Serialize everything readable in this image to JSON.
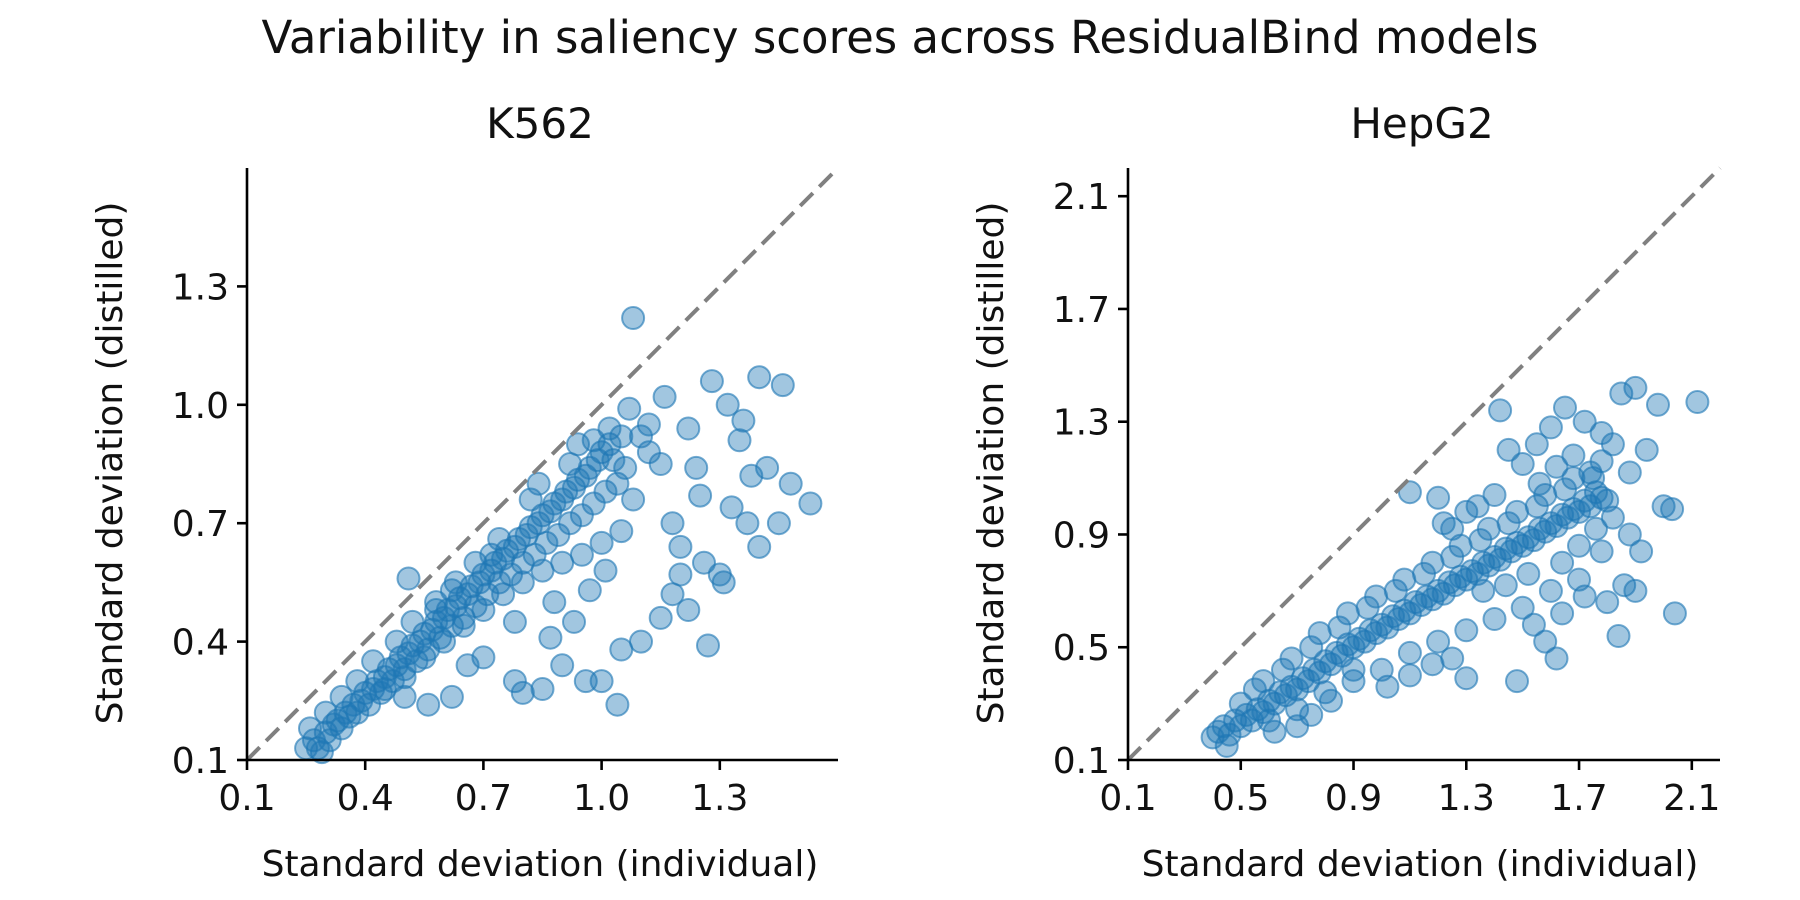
{
  "suptitle": "Variability in saliency scores across ResidualBind models",
  "chart_data": [
    {
      "type": "scatter",
      "title": "K562",
      "xlabel": "Standard deviation (individual)",
      "ylabel": "Standard deviation (distilled)",
      "xlim": [
        0.1,
        1.6
      ],
      "ylim": [
        0.1,
        1.6
      ],
      "xticks": [
        "0.1",
        "0.4",
        "0.7",
        "1.0",
        "1.3"
      ],
      "yticks": [
        "0.1",
        "0.4",
        "0.7",
        "1.0",
        "1.3"
      ],
      "diagonal": "y = x",
      "color": "#1f77b4",
      "points": [
        [
          0.25,
          0.13
        ],
        [
          0.27,
          0.15
        ],
        [
          0.28,
          0.13
        ],
        [
          0.3,
          0.17
        ],
        [
          0.31,
          0.15
        ],
        [
          0.32,
          0.19
        ],
        [
          0.33,
          0.2
        ],
        [
          0.34,
          0.18
        ],
        [
          0.35,
          0.22
        ],
        [
          0.36,
          0.21
        ],
        [
          0.37,
          0.24
        ],
        [
          0.38,
          0.22
        ],
        [
          0.39,
          0.25
        ],
        [
          0.4,
          0.27
        ],
        [
          0.41,
          0.24
        ],
        [
          0.42,
          0.28
        ],
        [
          0.43,
          0.3
        ],
        [
          0.44,
          0.27
        ],
        [
          0.45,
          0.31
        ],
        [
          0.46,
          0.33
        ],
        [
          0.47,
          0.3
        ],
        [
          0.48,
          0.34
        ],
        [
          0.49,
          0.36
        ],
        [
          0.5,
          0.33
        ],
        [
          0.51,
          0.37
        ],
        [
          0.52,
          0.39
        ],
        [
          0.53,
          0.35
        ],
        [
          0.54,
          0.4
        ],
        [
          0.55,
          0.42
        ],
        [
          0.56,
          0.38
        ],
        [
          0.57,
          0.43
        ],
        [
          0.58,
          0.45
        ],
        [
          0.59,
          0.41
        ],
        [
          0.6,
          0.46
        ],
        [
          0.61,
          0.48
        ],
        [
          0.62,
          0.44
        ],
        [
          0.63,
          0.49
        ],
        [
          0.64,
          0.51
        ],
        [
          0.65,
          0.46
        ],
        [
          0.66,
          0.52
        ],
        [
          0.67,
          0.54
        ],
        [
          0.68,
          0.49
        ],
        [
          0.69,
          0.55
        ],
        [
          0.7,
          0.57
        ],
        [
          0.71,
          0.52
        ],
        [
          0.72,
          0.58
        ],
        [
          0.73,
          0.6
        ],
        [
          0.74,
          0.55
        ],
        [
          0.75,
          0.61
        ],
        [
          0.76,
          0.63
        ],
        [
          0.77,
          0.57
        ],
        [
          0.78,
          0.64
        ],
        [
          0.79,
          0.66
        ],
        [
          0.8,
          0.6
        ],
        [
          0.81,
          0.67
        ],
        [
          0.82,
          0.69
        ],
        [
          0.83,
          0.62
        ],
        [
          0.84,
          0.7
        ],
        [
          0.85,
          0.72
        ],
        [
          0.86,
          0.65
        ],
        [
          0.87,
          0.73
        ],
        [
          0.88,
          0.75
        ],
        [
          0.89,
          0.67
        ],
        [
          0.9,
          0.76
        ],
        [
          0.91,
          0.78
        ],
        [
          0.92,
          0.7
        ],
        [
          0.93,
          0.79
        ],
        [
          0.94,
          0.81
        ],
        [
          0.95,
          0.72
        ],
        [
          0.96,
          0.82
        ],
        [
          0.97,
          0.84
        ],
        [
          0.98,
          0.75
        ],
        [
          0.99,
          0.86
        ],
        [
          1.0,
          0.88
        ],
        [
          1.01,
          0.78
        ],
        [
          1.02,
          0.9
        ],
        [
          1.03,
          0.86
        ],
        [
          1.04,
          0.8
        ],
        [
          1.05,
          0.92
        ],
        [
          1.06,
          0.84
        ],
        [
          0.7,
          0.48
        ],
        [
          0.75,
          0.52
        ],
        [
          0.8,
          0.55
        ],
        [
          0.85,
          0.58
        ],
        [
          0.9,
          0.6
        ],
        [
          0.95,
          0.62
        ],
        [
          1.0,
          0.65
        ],
        [
          1.05,
          0.68
        ],
        [
          0.78,
          0.45
        ],
        [
          0.88,
          0.5
        ],
        [
          0.6,
          0.4
        ],
        [
          0.65,
          0.44
        ],
        [
          0.55,
          0.36
        ],
        [
          0.5,
          0.31
        ],
        [
          0.45,
          0.28
        ],
        [
          0.72,
          0.62
        ],
        [
          0.82,
          0.76
        ],
        [
          0.92,
          0.85
        ],
        [
          0.98,
          0.91
        ],
        [
          0.62,
          0.53
        ],
        [
          0.68,
          0.6
        ],
        [
          0.52,
          0.45
        ],
        [
          0.58,
          0.5
        ],
        [
          0.48,
          0.4
        ],
        [
          0.42,
          0.35
        ],
        [
          0.38,
          0.3
        ],
        [
          0.34,
          0.26
        ],
        [
          0.3,
          0.22
        ],
        [
          0.29,
          0.12
        ],
        [
          0.26,
          0.18
        ],
        [
          1.08,
          1.22
        ],
        [
          1.08,
          0.76
        ],
        [
          1.1,
          0.92
        ],
        [
          1.12,
          0.95
        ],
        [
          1.15,
          0.85
        ],
        [
          1.16,
          1.02
        ],
        [
          1.18,
          0.7
        ],
        [
          1.2,
          0.64
        ],
        [
          1.22,
          0.94
        ],
        [
          1.24,
          0.84
        ],
        [
          1.28,
          1.06
        ],
        [
          1.32,
          1.0
        ],
        [
          1.36,
          0.96
        ],
        [
          1.4,
          1.07
        ],
        [
          1.46,
          1.05
        ],
        [
          1.42,
          0.84
        ],
        [
          1.48,
          0.8
        ],
        [
          1.53,
          0.75
        ],
        [
          1.45,
          0.7
        ],
        [
          1.4,
          0.64
        ],
        [
          1.3,
          0.57
        ],
        [
          1.31,
          0.55
        ],
        [
          1.27,
          0.39
        ],
        [
          1.22,
          0.48
        ],
        [
          1.18,
          0.52
        ],
        [
          1.15,
          0.46
        ],
        [
          1.1,
          0.4
        ],
        [
          1.05,
          0.38
        ],
        [
          1.04,
          0.24
        ],
        [
          1.0,
          0.3
        ],
        [
          0.96,
          0.3
        ],
        [
          0.9,
          0.34
        ],
        [
          0.85,
          0.28
        ],
        [
          0.8,
          0.27
        ],
        [
          0.78,
          0.3
        ],
        [
          0.7,
          0.36
        ],
        [
          0.66,
          0.34
        ],
        [
          0.62,
          0.26
        ],
        [
          0.56,
          0.24
        ],
        [
          0.5,
          0.26
        ],
        [
          0.51,
          0.56
        ],
        [
          0.58,
          0.48
        ],
        [
          0.63,
          0.55
        ],
        [
          0.74,
          0.66
        ],
        [
          0.84,
          0.8
        ],
        [
          0.94,
          0.9
        ],
        [
          1.02,
          0.94
        ],
        [
          1.07,
          0.99
        ],
        [
          1.12,
          0.88
        ],
        [
          1.25,
          0.77
        ],
        [
          1.35,
          0.91
        ],
        [
          1.38,
          0.82
        ],
        [
          1.2,
          0.57
        ],
        [
          1.26,
          0.6
        ],
        [
          1.33,
          0.74
        ],
        [
          1.37,
          0.7
        ],
        [
          0.93,
          0.45
        ],
        [
          0.97,
          0.53
        ],
        [
          1.01,
          0.58
        ],
        [
          0.87,
          0.41
        ]
      ]
    },
    {
      "type": "scatter",
      "title": "HepG2",
      "xlabel": "Standard deviation (individual)",
      "ylabel": "Standard deviation (distilled)",
      "xlim": [
        0.1,
        2.2
      ],
      "ylim": [
        0.1,
        2.2
      ],
      "xticks": [
        "0.1",
        "0.5",
        "0.9",
        "1.3",
        "1.7",
        "2.1"
      ],
      "yticks": [
        "0.1",
        "0.5",
        "0.9",
        "1.3",
        "1.7",
        "2.1"
      ],
      "diagonal": "y = x",
      "color": "#1f77b4",
      "points": [
        [
          0.4,
          0.18
        ],
        [
          0.42,
          0.2
        ],
        [
          0.44,
          0.22
        ],
        [
          0.46,
          0.19
        ],
        [
          0.48,
          0.24
        ],
        [
          0.5,
          0.22
        ],
        [
          0.52,
          0.26
        ],
        [
          0.54,
          0.24
        ],
        [
          0.56,
          0.28
        ],
        [
          0.58,
          0.27
        ],
        [
          0.6,
          0.31
        ],
        [
          0.62,
          0.3
        ],
        [
          0.64,
          0.34
        ],
        [
          0.66,
          0.33
        ],
        [
          0.68,
          0.36
        ],
        [
          0.7,
          0.35
        ],
        [
          0.72,
          0.39
        ],
        [
          0.74,
          0.38
        ],
        [
          0.76,
          0.42
        ],
        [
          0.78,
          0.41
        ],
        [
          0.8,
          0.45
        ],
        [
          0.82,
          0.44
        ],
        [
          0.84,
          0.48
        ],
        [
          0.86,
          0.47
        ],
        [
          0.88,
          0.51
        ],
        [
          0.9,
          0.5
        ],
        [
          0.92,
          0.53
        ],
        [
          0.94,
          0.52
        ],
        [
          0.96,
          0.56
        ],
        [
          0.98,
          0.55
        ],
        [
          1.0,
          0.58
        ],
        [
          1.02,
          0.57
        ],
        [
          1.04,
          0.61
        ],
        [
          1.06,
          0.6
        ],
        [
          1.08,
          0.63
        ],
        [
          1.1,
          0.62
        ],
        [
          1.12,
          0.66
        ],
        [
          1.14,
          0.65
        ],
        [
          1.16,
          0.68
        ],
        [
          1.18,
          0.67
        ],
        [
          1.2,
          0.7
        ],
        [
          1.22,
          0.69
        ],
        [
          1.24,
          0.73
        ],
        [
          1.26,
          0.72
        ],
        [
          1.28,
          0.75
        ],
        [
          1.3,
          0.74
        ],
        [
          1.32,
          0.77
        ],
        [
          1.34,
          0.76
        ],
        [
          1.36,
          0.8
        ],
        [
          1.38,
          0.79
        ],
        [
          1.4,
          0.82
        ],
        [
          1.42,
          0.81
        ],
        [
          1.44,
          0.85
        ],
        [
          1.46,
          0.84
        ],
        [
          1.48,
          0.87
        ],
        [
          1.5,
          0.86
        ],
        [
          1.52,
          0.89
        ],
        [
          1.54,
          0.88
        ],
        [
          1.56,
          0.92
        ],
        [
          1.58,
          0.91
        ],
        [
          1.6,
          0.94
        ],
        [
          1.62,
          0.93
        ],
        [
          1.64,
          0.97
        ],
        [
          1.66,
          0.96
        ],
        [
          1.68,
          0.99
        ],
        [
          1.7,
          0.98
        ],
        [
          1.72,
          1.02
        ],
        [
          1.74,
          1.0
        ],
        [
          1.76,
          1.05
        ],
        [
          1.78,
          1.03
        ],
        [
          0.55,
          0.35
        ],
        [
          0.65,
          0.42
        ],
        [
          0.75,
          0.5
        ],
        [
          0.85,
          0.57
        ],
        [
          0.95,
          0.64
        ],
        [
          1.05,
          0.7
        ],
        [
          1.15,
          0.76
        ],
        [
          1.25,
          0.82
        ],
        [
          1.35,
          0.88
        ],
        [
          1.45,
          0.94
        ],
        [
          1.55,
          1.0
        ],
        [
          1.65,
          1.06
        ],
        [
          1.75,
          1.1
        ],
        [
          0.7,
          0.28
        ],
        [
          0.8,
          0.34
        ],
        [
          0.9,
          0.38
        ],
        [
          1.0,
          0.42
        ],
        [
          1.1,
          0.48
        ],
        [
          1.2,
          0.52
        ],
        [
          1.3,
          0.56
        ],
        [
          1.4,
          0.6
        ],
        [
          1.5,
          0.64
        ],
        [
          1.6,
          0.7
        ],
        [
          1.7,
          0.74
        ],
        [
          0.6,
          0.24
        ],
        [
          0.5,
          0.3
        ],
        [
          0.45,
          0.15
        ],
        [
          0.58,
          0.38
        ],
        [
          0.68,
          0.46
        ],
        [
          0.78,
          0.55
        ],
        [
          0.88,
          0.62
        ],
        [
          0.98,
          0.68
        ],
        [
          1.08,
          0.74
        ],
        [
          1.18,
          0.8
        ],
        [
          1.28,
          0.86
        ],
        [
          1.38,
          0.92
        ],
        [
          1.48,
          0.98
        ],
        [
          1.58,
          1.04
        ],
        [
          1.68,
          1.1
        ],
        [
          1.78,
          1.16
        ],
        [
          1.1,
          1.05
        ],
        [
          1.2,
          1.03
        ],
        [
          1.25,
          0.92
        ],
        [
          1.3,
          0.98
        ],
        [
          1.4,
          1.04
        ],
        [
          1.45,
          1.2
        ],
        [
          1.5,
          1.15
        ],
        [
          1.55,
          1.22
        ],
        [
          1.6,
          1.28
        ],
        [
          1.65,
          1.35
        ],
        [
          1.72,
          1.3
        ],
        [
          1.78,
          1.26
        ],
        [
          1.85,
          1.4
        ],
        [
          1.9,
          1.42
        ],
        [
          1.98,
          1.36
        ],
        [
          2.12,
          1.37
        ],
        [
          1.82,
          1.22
        ],
        [
          1.88,
          1.12
        ],
        [
          1.94,
          1.2
        ],
        [
          2.0,
          1.0
        ],
        [
          2.03,
          0.99
        ],
        [
          1.92,
          0.84
        ],
        [
          1.86,
          0.72
        ],
        [
          1.8,
          0.66
        ],
        [
          1.84,
          0.54
        ],
        [
          2.04,
          0.62
        ],
        [
          1.9,
          0.7
        ],
        [
          1.62,
          0.46
        ],
        [
          1.58,
          0.52
        ],
        [
          1.48,
          0.38
        ],
        [
          1.3,
          0.39
        ],
        [
          1.25,
          0.46
        ],
        [
          1.18,
          0.44
        ],
        [
          1.1,
          0.4
        ],
        [
          1.02,
          0.36
        ],
        [
          0.9,
          0.42
        ],
        [
          0.82,
          0.31
        ],
        [
          0.75,
          0.26
        ],
        [
          0.7,
          0.22
        ],
        [
          0.62,
          0.2
        ],
        [
          1.52,
          0.76
        ],
        [
          1.64,
          0.8
        ],
        [
          1.7,
          0.86
        ],
        [
          1.76,
          0.92
        ],
        [
          1.82,
          0.96
        ],
        [
          1.88,
          0.9
        ],
        [
          1.8,
          1.02
        ],
        [
          1.74,
          1.12
        ],
        [
          1.68,
          1.18
        ],
        [
          1.42,
          1.34
        ],
        [
          1.56,
          1.08
        ],
        [
          1.62,
          1.14
        ],
        [
          1.34,
          1.0
        ],
        [
          1.22,
          0.94
        ],
        [
          1.36,
          0.7
        ],
        [
          1.44,
          0.72
        ],
        [
          1.54,
          0.58
        ],
        [
          1.64,
          0.62
        ],
        [
          1.72,
          0.68
        ],
        [
          1.78,
          0.84
        ]
      ]
    }
  ]
}
